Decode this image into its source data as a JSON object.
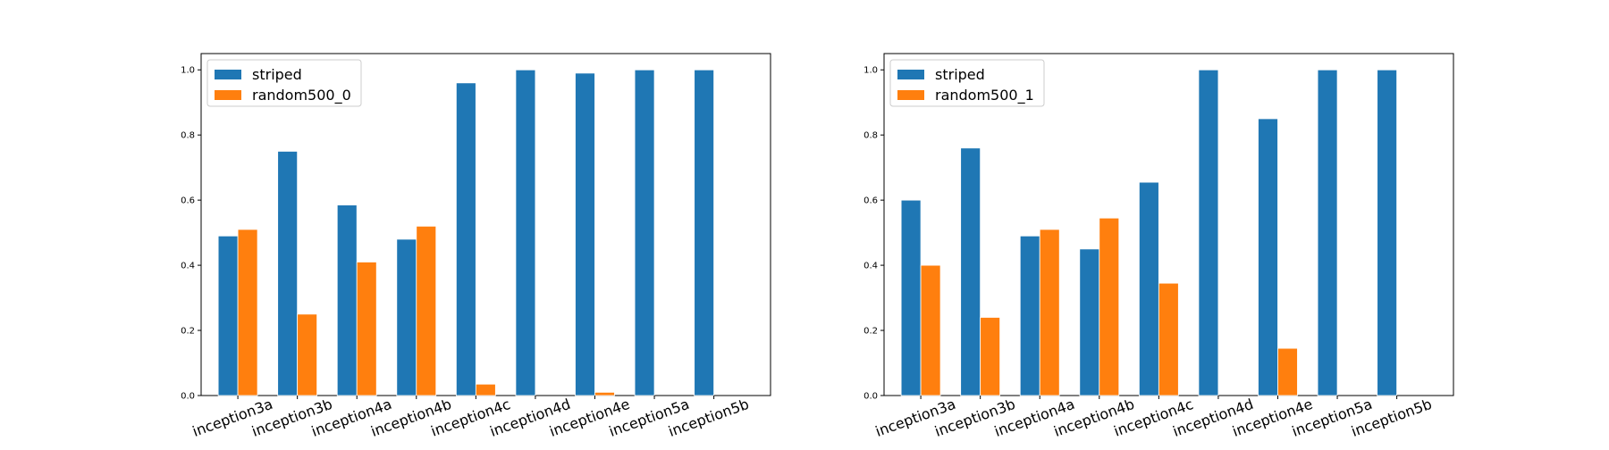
{
  "chart_data": [
    {
      "type": "bar",
      "categories": [
        "inception3a",
        "inception3b",
        "inception4a",
        "inception4b",
        "inception4c",
        "inception4d",
        "inception4e",
        "inception5a",
        "inception5b"
      ],
      "series": [
        {
          "name": "striped",
          "color": "#1f77b4",
          "values": [
            0.49,
            0.75,
            0.585,
            0.48,
            0.96,
            1.0,
            0.99,
            1.0,
            1.0
          ]
        },
        {
          "name": "random500_0",
          "color": "#ff7f0e",
          "values": [
            0.51,
            0.25,
            0.41,
            0.52,
            0.035,
            0.0,
            0.01,
            0.0,
            0.0
          ]
        }
      ],
      "ylim": [
        0,
        1.05
      ],
      "yticks": [
        "0.0",
        "0.2",
        "0.4",
        "0.6",
        "0.8",
        "1.0"
      ],
      "legend": "top-left",
      "grid": false
    },
    {
      "type": "bar",
      "categories": [
        "inception3a",
        "inception3b",
        "inception4a",
        "inception4b",
        "inception4c",
        "inception4d",
        "inception4e",
        "inception5a",
        "inception5b"
      ],
      "series": [
        {
          "name": "striped",
          "color": "#1f77b4",
          "values": [
            0.6,
            0.76,
            0.49,
            0.45,
            0.655,
            1.0,
            0.85,
            1.0,
            1.0
          ]
        },
        {
          "name": "random500_1",
          "color": "#ff7f0e",
          "values": [
            0.4,
            0.24,
            0.51,
            0.545,
            0.345,
            0.0,
            0.145,
            0.0,
            0.0
          ]
        }
      ],
      "ylim": [
        0,
        1.05
      ],
      "yticks": [
        "0.0",
        "0.2",
        "0.4",
        "0.6",
        "0.8",
        "1.0"
      ],
      "legend": "top-left",
      "grid": false
    }
  ]
}
